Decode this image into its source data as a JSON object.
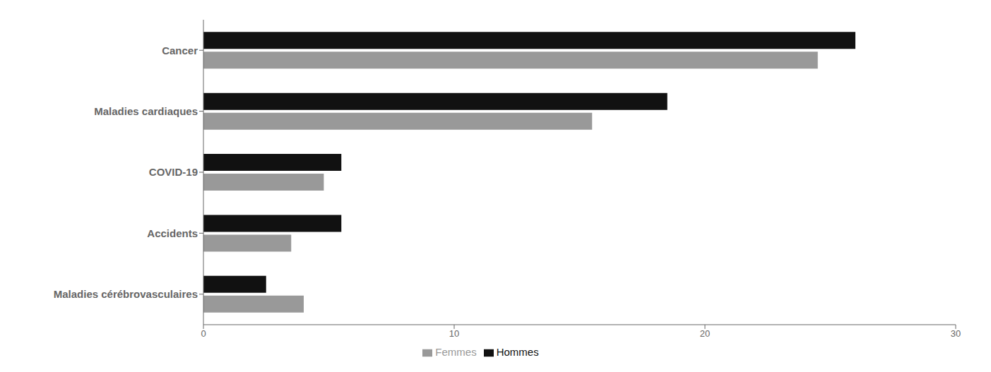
{
  "chart_data": {
    "type": "bar",
    "orientation": "horizontal",
    "categories": [
      "Cancer",
      "Maladies cardiaques",
      "COVID-19",
      "Accidents",
      "Maladies cérébrovasculaires"
    ],
    "series": [
      {
        "name": "Hommes",
        "color": "#111111",
        "values": [
          26.0,
          18.5,
          5.5,
          5.5,
          2.5
        ]
      },
      {
        "name": "Femmes",
        "color": "#999999",
        "values": [
          24.5,
          15.5,
          4.8,
          3.5,
          4.0
        ]
      }
    ],
    "xlim": [
      0,
      30
    ],
    "xticks": [
      0,
      10,
      20,
      30
    ],
    "grid": false,
    "legend": "bottom"
  }
}
